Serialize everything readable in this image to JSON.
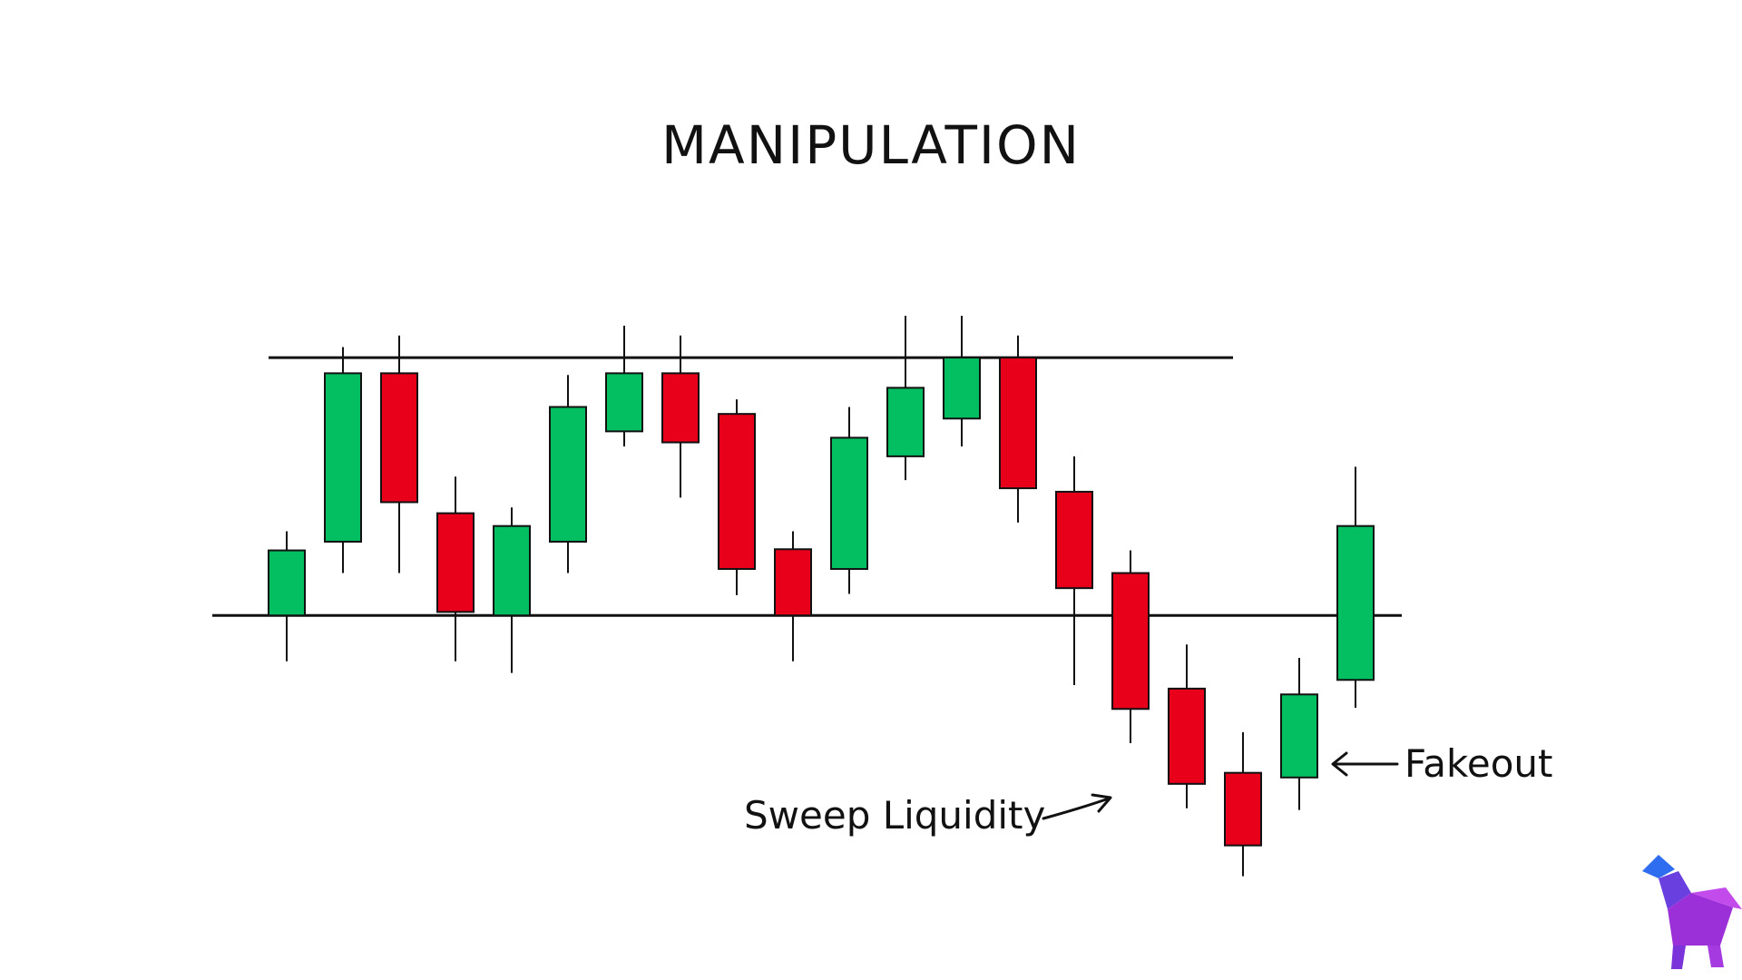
{
  "chart_data": {
    "type": "candlestick",
    "title": "MANIPULATION",
    "xlabel": "",
    "ylabel": "",
    "ylim": [
      0,
      100
    ],
    "grid": false,
    "colors": {
      "up": "#04BE62",
      "down": "#E8001B",
      "outline": "#111111"
    },
    "levels": [
      {
        "price": 85.3,
        "start": 0,
        "end": 16.5
      },
      {
        "price": 40.9,
        "start": -1,
        "end": 19.5
      }
    ],
    "candles": [
      {
        "open": 40.9,
        "close": 52.1,
        "high": 55.4,
        "low": 33.0
      },
      {
        "open": 53.6,
        "close": 82.6,
        "high": 87.1,
        "low": 48.2
      },
      {
        "open": 82.6,
        "close": 60.4,
        "high": 89.1,
        "low": 48.2
      },
      {
        "open": 58.5,
        "close": 41.5,
        "high": 64.8,
        "low": 33.0
      },
      {
        "open": 40.9,
        "close": 56.3,
        "high": 59.5,
        "low": 31.0
      },
      {
        "open": 53.6,
        "close": 76.8,
        "high": 82.3,
        "low": 48.2
      },
      {
        "open": 72.6,
        "close": 82.6,
        "high": 90.8,
        "low": 70.0
      },
      {
        "open": 82.6,
        "close": 70.7,
        "high": 89.1,
        "low": 61.2
      },
      {
        "open": 75.6,
        "close": 48.9,
        "high": 78.1,
        "low": 44.4
      },
      {
        "open": 52.3,
        "close": 40.9,
        "high": 55.4,
        "low": 33.0
      },
      {
        "open": 48.9,
        "close": 71.5,
        "high": 76.8,
        "low": 44.6
      },
      {
        "open": 68.3,
        "close": 80.1,
        "high": 92.5,
        "low": 64.2
      },
      {
        "open": 74.8,
        "close": 85.3,
        "high": 92.5,
        "low": 70.0
      },
      {
        "open": 85.3,
        "close": 62.8,
        "high": 89.1,
        "low": 56.9
      },
      {
        "open": 62.2,
        "close": 45.6,
        "high": 68.3,
        "low": 28.9
      },
      {
        "open": 48.2,
        "close": 24.8,
        "high": 52.1,
        "low": 18.9
      },
      {
        "open": 28.3,
        "close": 11.9,
        "high": 35.9,
        "low": 7.7
      },
      {
        "open": 13.8,
        "close": 1.3,
        "high": 20.8,
        "low": -4.0
      },
      {
        "open": 13.0,
        "close": 27.3,
        "high": 33.6,
        "low": 7.4
      },
      {
        "open": 29.8,
        "close": 56.3,
        "high": 66.5,
        "low": 25.0
      }
    ],
    "annotations": [
      {
        "text": "Sweep Liquidity"
      },
      {
        "text": "Fakeout"
      }
    ]
  },
  "logo": {
    "icon": "bull-icon",
    "colors": [
      "#2F6DF0",
      "#6A3FE0",
      "#9B2FD8",
      "#C44BEB"
    ]
  }
}
